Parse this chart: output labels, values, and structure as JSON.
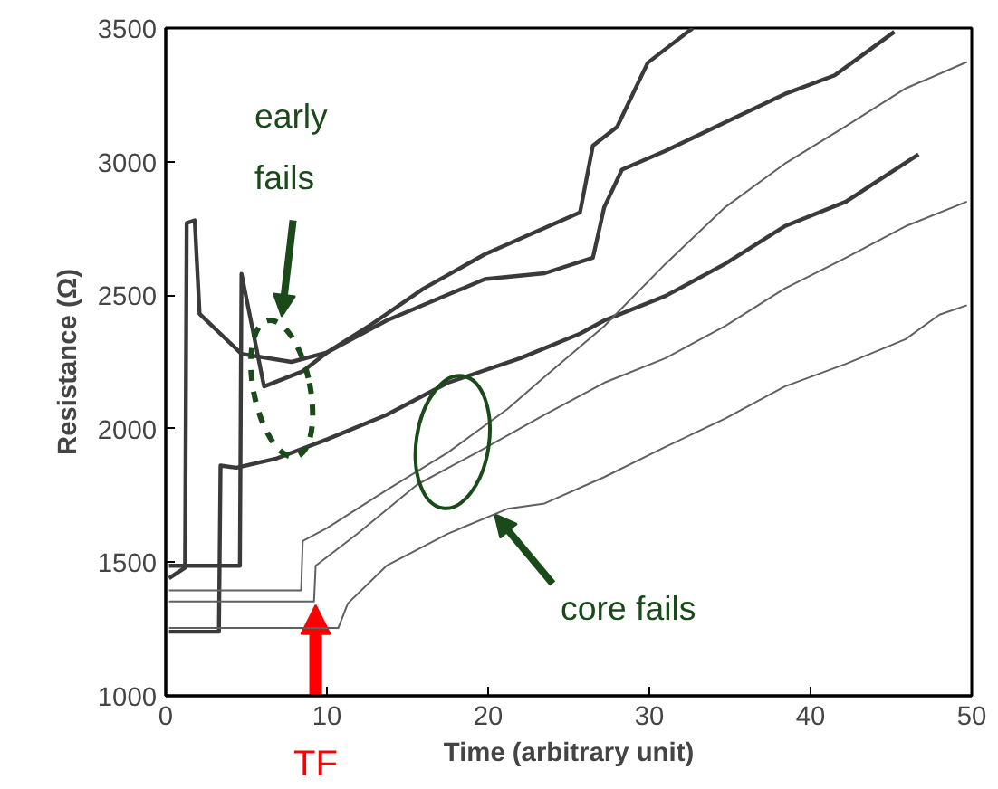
{
  "chart_data": {
    "type": "line",
    "xlabel": "Time (arbitrary unit)",
    "ylabel": "Resistance (Ω)",
    "xlim": [
      0,
      50
    ],
    "ylim": [
      1000,
      3500
    ],
    "xticks": [
      0,
      10,
      20,
      30,
      40,
      50
    ],
    "yticks": [
      1000,
      1500,
      2000,
      2500,
      3000,
      3500
    ],
    "grid": false,
    "marker": "none",
    "line_style": "solid",
    "series": [
      {
        "color": "#3a3a3a",
        "x": [
          0.2,
          1.2,
          1.3,
          1.8,
          2.1,
          4.7,
          7.8,
          10,
          12.6,
          16,
          19.8,
          25.7,
          26.5,
          28,
          29.9,
          32.7
        ],
        "values": [
          1440,
          1480,
          2770,
          2780,
          2430,
          2280,
          2250,
          2285,
          2384,
          2525,
          2653,
          2810,
          3060,
          3130,
          3370,
          3500
        ]
      },
      {
        "color": "#3a3a3a",
        "x": [
          0.2,
          4.6,
          4.7,
          6.1,
          8.5,
          10,
          13.7,
          19.8,
          23.5,
          26.5,
          27.2,
          28.3,
          31,
          34.7,
          38.4,
          41.5,
          45.2
        ],
        "values": [
          1487,
          1487,
          2580,
          2158,
          2215,
          2285,
          2405,
          2560,
          2582,
          2640,
          2829,
          2970,
          3040,
          3147,
          3253,
          3323,
          3486
        ]
      },
      {
        "color": "#3a3a3a",
        "x": [
          0.2,
          3.3,
          3.4,
          4.4,
          6.9,
          10,
          13.7,
          17.5,
          22,
          25.7,
          27.2,
          31,
          34.7,
          38.4,
          42.2,
          44,
          46.7
        ],
        "values": [
          1240,
          1240,
          1862,
          1854,
          1889,
          1960,
          2052,
          2172,
          2264,
          2356,
          2405,
          2497,
          2617,
          2758,
          2850,
          2921,
          3027
        ]
      },
      {
        "color": "#606060",
        "x": [
          0.2,
          8.4,
          8.5,
          10,
          13.7,
          17.5,
          21.2,
          23.5,
          27.2,
          31,
          34.7,
          38.4,
          42.2,
          45.9,
          49.7
        ],
        "values": [
          1395,
          1395,
          1580,
          1628,
          1770,
          1911,
          2074,
          2194,
          2384,
          2617,
          2829,
          2992,
          3133,
          3274,
          3373
        ]
      },
      {
        "color": "#606060",
        "x": [
          0.2,
          9.2,
          9.3,
          11.9,
          15.6,
          19.3,
          23.5,
          27.2,
          31,
          34.7,
          38.4,
          42.2,
          45.9,
          49.7
        ],
        "values": [
          1353,
          1353,
          1487,
          1607,
          1791,
          1911,
          2052,
          2172,
          2264,
          2384,
          2525,
          2640,
          2758,
          2850
        ]
      },
      {
        "color": "#606060",
        "x": [
          0.2,
          10.7,
          11.3,
          13.7,
          17.5,
          21.2,
          23.5,
          27.2,
          31,
          34.7,
          38.4,
          42.2,
          45.9,
          48,
          49.7
        ],
        "values": [
          1254,
          1254,
          1346,
          1487,
          1607,
          1700,
          1720,
          1819,
          1932,
          2038,
          2158,
          2243,
          2335,
          2427,
          2462
        ]
      }
    ],
    "annotations": [
      "early fails",
      {
        "text": "core fails",
        "x": 20.4,
        "y": 1680
      },
      "TF"
    ]
  }
}
